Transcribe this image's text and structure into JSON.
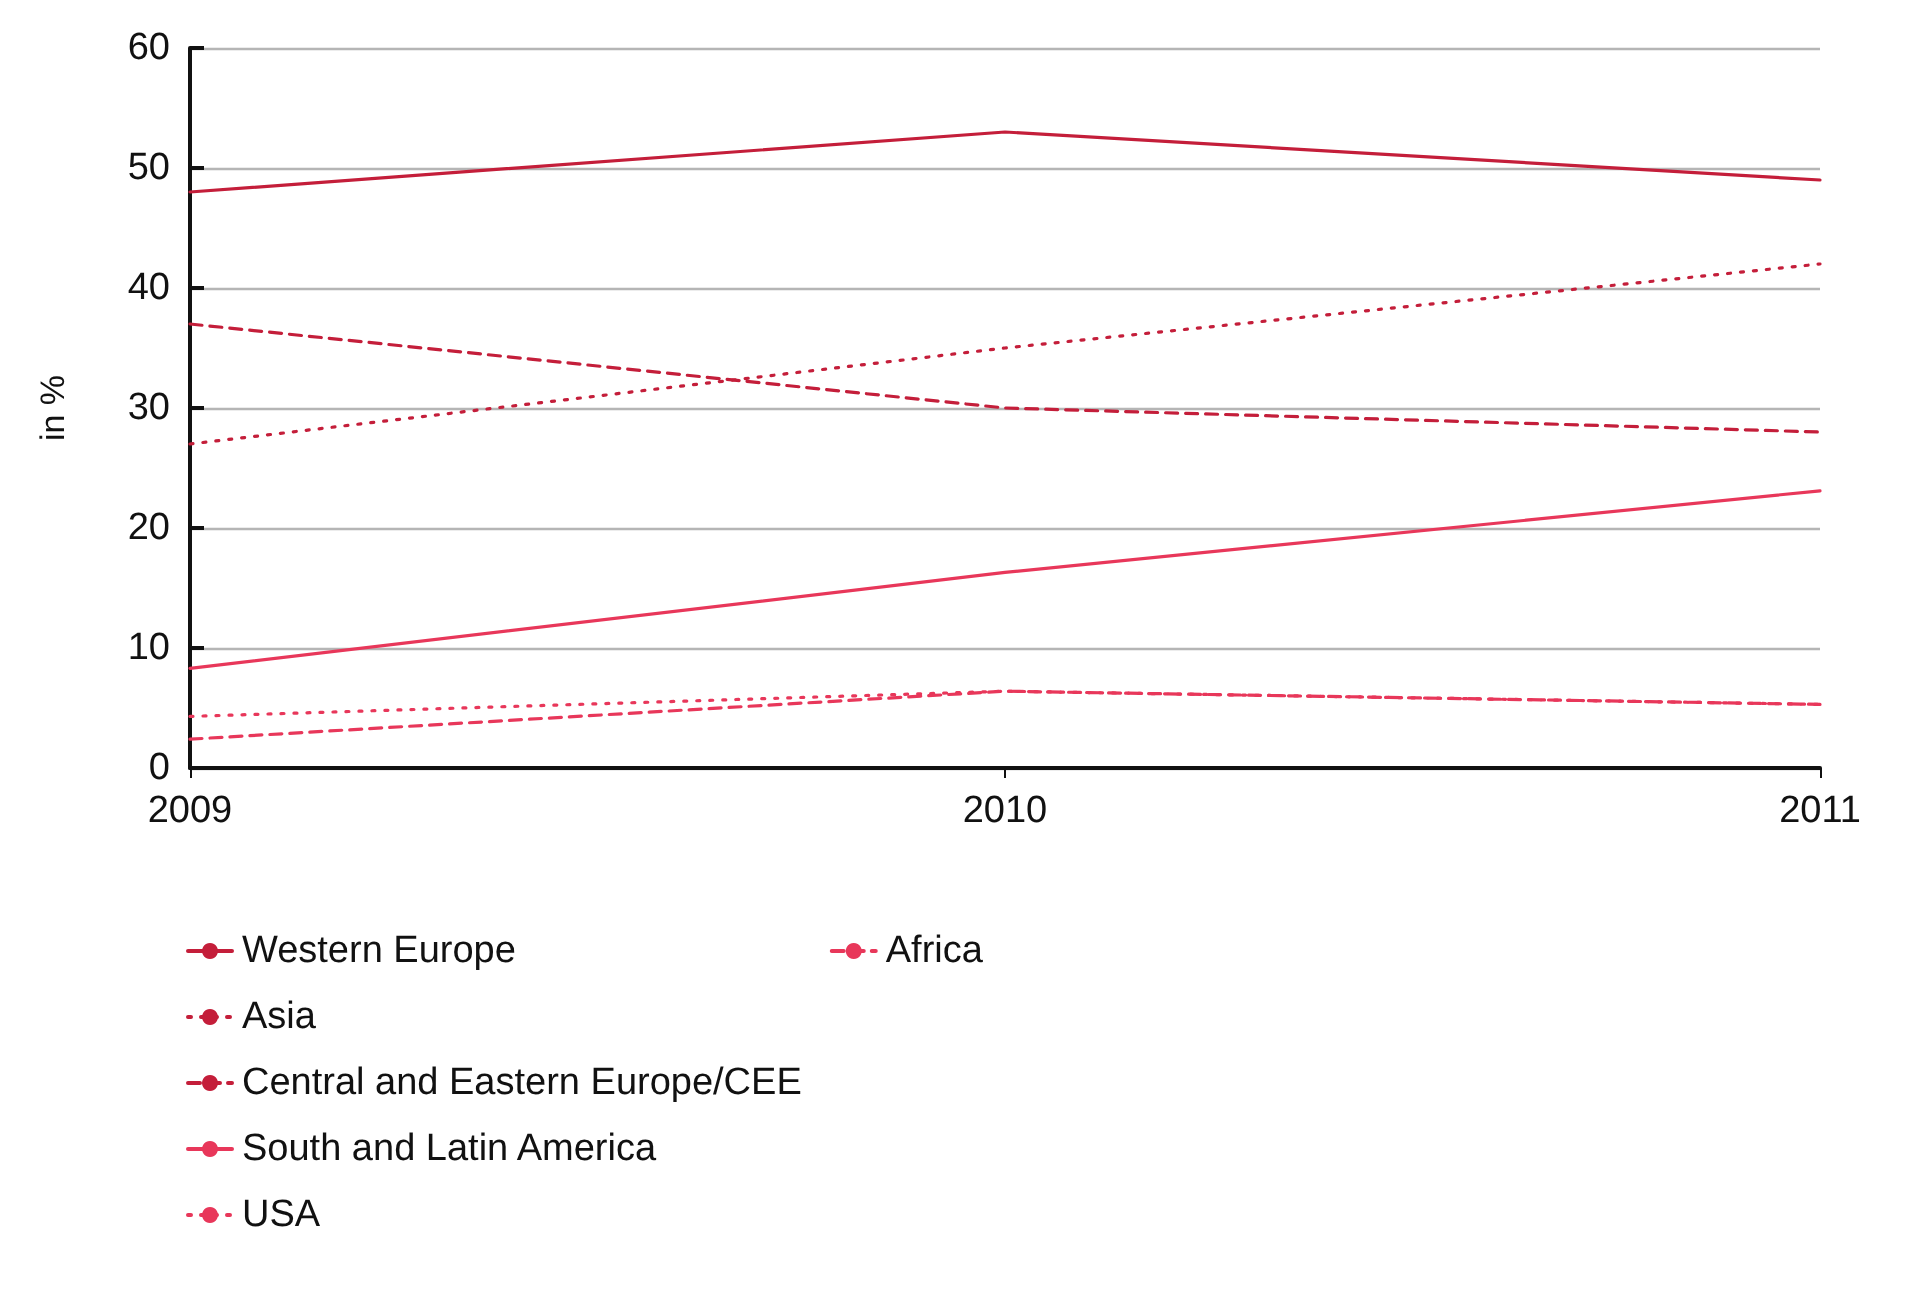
{
  "chart_data": {
    "type": "line",
    "ylabel": "in %",
    "x": [
      2009,
      2010,
      2011
    ],
    "xlim": [
      2009,
      2011
    ],
    "xticks": [
      2009,
      2010,
      2011
    ],
    "ylim": [
      0,
      60
    ],
    "yticks": [
      0,
      10,
      20,
      30,
      40,
      50,
      60
    ],
    "grid": "y",
    "legend": "bottom left",
    "marker": "none",
    "series": [
      {
        "name": "Western Europe",
        "color": "#c41e3a",
        "line_style": "solid",
        "values": [
          48,
          53,
          49
        ]
      },
      {
        "name": "Asia",
        "color": "#c41e3a",
        "line_style": "dotted",
        "values": [
          27,
          35,
          42
        ]
      },
      {
        "name": "Central and Eastern Europe/CEE",
        "color": "#c41e3a",
        "line_style": "dashed",
        "values": [
          37,
          30,
          28
        ]
      },
      {
        "name": "South and Latin America",
        "color": "#e8375a",
        "line_style": "solid",
        "values": [
          8.3,
          16.3,
          23.1
        ]
      },
      {
        "name": "USA",
        "color": "#e8375a",
        "line_style": "dotted",
        "values": [
          4.3,
          6.4,
          5.3
        ]
      },
      {
        "name": "Africa",
        "color": "#e8375a",
        "line_style": "dashed",
        "values": [
          2.4,
          6.4,
          5.3
        ]
      }
    ]
  }
}
